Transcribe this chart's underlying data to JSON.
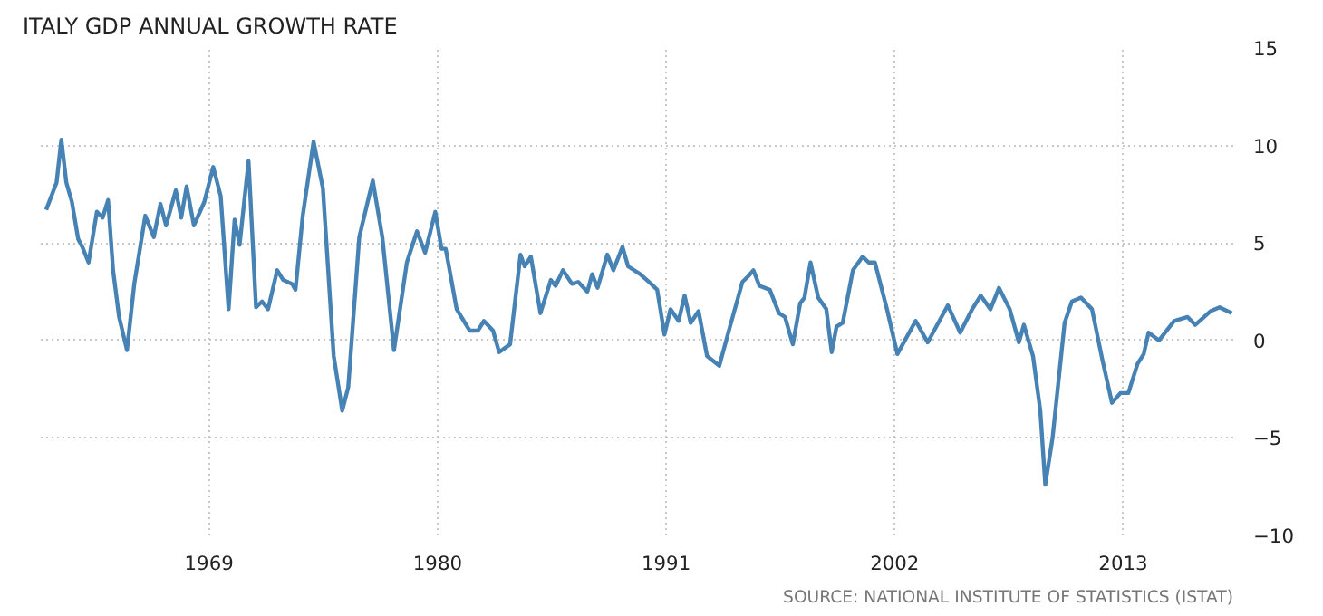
{
  "chart_data": {
    "type": "line",
    "title": "ITALY GDP ANNUAL GROWTH RATE",
    "annotations": [
      "SOURCE: NATIONAL INSTITUTE OF STATISTICS (ISTAT)"
    ],
    "x": [
      1961.16,
      1961.66,
      1961.89,
      1962.13,
      1962.4,
      1962.7,
      1962.9,
      1963.2,
      1963.6,
      1963.88,
      1964.14,
      1964.38,
      1964.67,
      1965.05,
      1965.4,
      1965.93,
      1966.34,
      1966.66,
      1966.93,
      1967.4,
      1967.66,
      1967.92,
      1968.27,
      1968.77,
      1969.2,
      1969.56,
      1969.94,
      1970.23,
      1970.47,
      1970.9,
      1971.26,
      1971.55,
      1971.84,
      1972.28,
      1972.57,
      1973.0,
      1973.16,
      1973.51,
      1974.03,
      1974.48,
      1975.0,
      1975.41,
      1975.7,
      1976.23,
      1976.88,
      1977.34,
      1977.9,
      1978.52,
      1979.01,
      1979.4,
      1979.89,
      1980.19,
      1980.39,
      1980.92,
      1981.55,
      1981.94,
      1982.23,
      1982.67,
      1982.96,
      1983.49,
      1983.99,
      1984.19,
      1984.49,
      1984.95,
      1985.45,
      1985.68,
      1986.03,
      1986.47,
      1986.77,
      1987.21,
      1987.44,
      1987.7,
      1988.17,
      1988.46,
      1988.9,
      1989.17,
      1989.75,
      1990.28,
      1990.57,
      1990.92,
      1991.21,
      1991.6,
      1991.89,
      1992.18,
      1992.56,
      1992.97,
      1993.56,
      1994.02,
      1994.67,
      1994.96,
      1995.2,
      1995.49,
      1995.99,
      1996.43,
      1996.72,
      1997.1,
      1997.45,
      1997.66,
      1997.95,
      1998.32,
      1998.71,
      1998.97,
      1999.2,
      1999.5,
      1999.99,
      2000.46,
      2000.75,
      2001.05,
      2001.63,
      2002.13,
      2003.01,
      2003.59,
      2004.56,
      2005.15,
      2005.73,
      2006.14,
      2006.61,
      2007.02,
      2007.54,
      2007.98,
      2008.22,
      2008.66,
      2009.01,
      2009.25,
      2009.6,
      2010.18,
      2010.53,
      2010.97,
      2011.5,
      2012.0,
      2012.46,
      2012.87,
      2013.25,
      2013.69,
      2013.99,
      2014.22,
      2014.72,
      2015.45,
      2016.1,
      2016.47,
      2017.2,
      2017.64,
      2018.23
    ],
    "series": [
      {
        "color": "#4682b4",
        "values": [
          6.7,
          8.1,
          10.3,
          8.1,
          7.1,
          5.2,
          4.8,
          4.0,
          6.6,
          6.3,
          7.2,
          3.6,
          1.2,
          -0.5,
          2.9,
          6.4,
          5.3,
          7.0,
          5.9,
          7.7,
          6.3,
          7.9,
          5.9,
          7.1,
          8.9,
          7.4,
          1.6,
          6.2,
          4.9,
          9.2,
          1.7,
          2.0,
          1.6,
          3.6,
          3.1,
          2.9,
          2.6,
          6.4,
          10.2,
          7.8,
          -0.8,
          -3.6,
          -2.4,
          5.3,
          8.2,
          5.3,
          -0.5,
          4.0,
          5.6,
          4.5,
          6.6,
          4.7,
          4.7,
          1.6,
          0.5,
          0.5,
          1.0,
          0.5,
          -0.6,
          -0.2,
          4.4,
          3.8,
          4.3,
          1.4,
          3.1,
          2.8,
          3.6,
          2.9,
          3.0,
          2.5,
          3.4,
          2.7,
          4.4,
          3.6,
          4.8,
          3.8,
          3.4,
          2.9,
          2.6,
          0.3,
          1.6,
          1.0,
          2.3,
          0.9,
          1.5,
          -0.8,
          -1.3,
          0.5,
          3.0,
          3.3,
          3.6,
          2.8,
          2.6,
          1.4,
          1.2,
          -0.2,
          1.9,
          2.2,
          4.0,
          2.2,
          1.6,
          -0.6,
          0.7,
          0.9,
          3.6,
          4.3,
          4.0,
          4.0,
          1.6,
          -0.7,
          1.0,
          -0.1,
          1.8,
          0.4,
          1.6,
          2.3,
          1.6,
          2.7,
          1.6,
          -0.1,
          0.8,
          -0.8,
          -3.6,
          -7.4,
          -5.0,
          0.9,
          2.0,
          2.2,
          1.6,
          -1.0,
          -3.2,
          -2.7,
          -2.7,
          -1.2,
          -0.7,
          0.4,
          0.0,
          1.0,
          1.2,
          0.8,
          1.5,
          1.7,
          1.4
        ]
      }
    ],
    "xlim": [
      1960.9,
      2018.3
    ],
    "ylim": [
      -10,
      15
    ],
    "xticks": [
      1969,
      1980,
      1991,
      2002,
      2013
    ],
    "yticks": [
      -10,
      -5,
      0,
      5,
      10,
      15
    ],
    "grid": true,
    "line_style": "solid",
    "marker": "none"
  }
}
